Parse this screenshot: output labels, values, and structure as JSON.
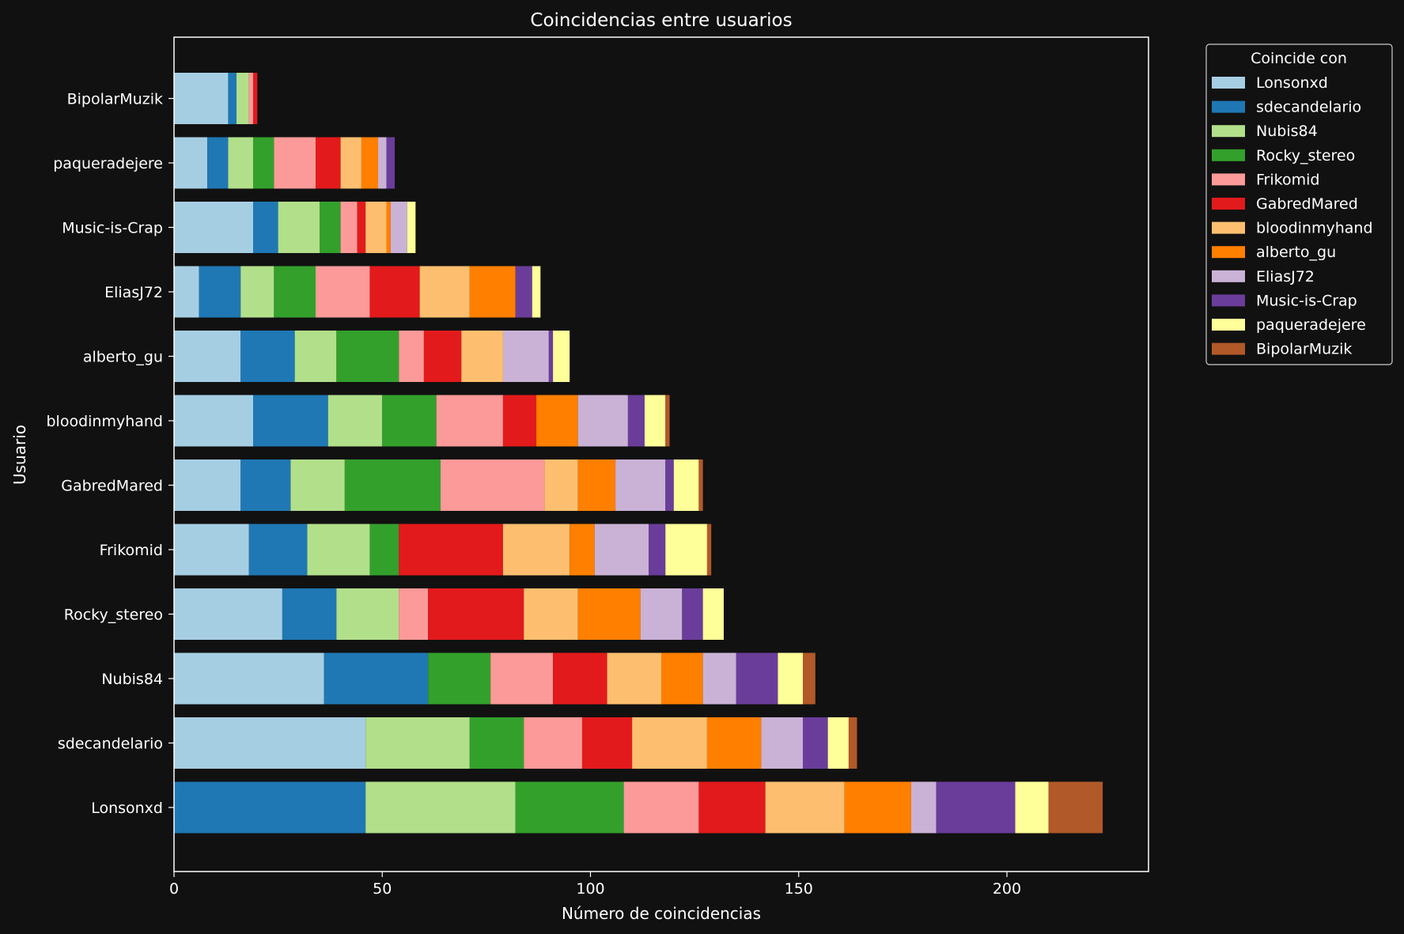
{
  "chart_data": {
    "type": "bar",
    "orientation": "horizontal",
    "stacked": true,
    "title": "Coincidencias entre usuarios",
    "xlabel": "Número de coincidencias",
    "ylabel": "Usuario",
    "xlim": [
      0,
      234
    ],
    "xticks": [
      0,
      50,
      100,
      150,
      200
    ],
    "grid": false,
    "legend_title": "Coincide con",
    "legend_position": "outside-top-right",
    "categories": [
      "Lonsonxd",
      "sdecandelario",
      "Nubis84",
      "Rocky_stereo",
      "Frikomid",
      "GabredMared",
      "bloodinmyhand",
      "alberto_gu",
      "EliasJ72",
      "Music-is-Crap",
      "paqueradejere",
      "BipolarMuzik"
    ],
    "series": [
      {
        "name": "Lonsonxd",
        "color": "#a6cee3",
        "values": [
          0,
          46,
          36,
          26,
          18,
          16,
          19,
          16,
          6,
          19,
          8,
          13
        ]
      },
      {
        "name": "sdecandelario",
        "color": "#1f78b4",
        "values": [
          46,
          0,
          25,
          13,
          14,
          12,
          18,
          13,
          10,
          6,
          5,
          2
        ]
      },
      {
        "name": "Nubis84",
        "color": "#b2df8a",
        "values": [
          36,
          25,
          0,
          15,
          15,
          13,
          13,
          10,
          8,
          10,
          6,
          3
        ]
      },
      {
        "name": "Rocky_stereo",
        "color": "#33a02c",
        "values": [
          26,
          13,
          15,
          0,
          7,
          23,
          13,
          15,
          10,
          5,
          5,
          0
        ]
      },
      {
        "name": "Frikomid",
        "color": "#fb9a99",
        "values": [
          18,
          14,
          15,
          7,
          0,
          25,
          16,
          6,
          13,
          4,
          10,
          1
        ]
      },
      {
        "name": "GabredMared",
        "color": "#e31a1c",
        "values": [
          16,
          12,
          13,
          23,
          25,
          0,
          8,
          9,
          12,
          2,
          6,
          1
        ]
      },
      {
        "name": "bloodinmyhand",
        "color": "#fdbf6f",
        "values": [
          19,
          18,
          13,
          13,
          16,
          8,
          0,
          10,
          12,
          5,
          5,
          0
        ]
      },
      {
        "name": "alberto_gu",
        "color": "#ff7f00",
        "values": [
          16,
          13,
          10,
          15,
          6,
          9,
          10,
          0,
          11,
          1,
          4,
          0
        ]
      },
      {
        "name": "EliasJ72",
        "color": "#cab2d6",
        "values": [
          6,
          10,
          8,
          10,
          13,
          12,
          12,
          11,
          0,
          4,
          2,
          0
        ]
      },
      {
        "name": "Music-is-Crap",
        "color": "#6a3d9a",
        "values": [
          19,
          6,
          10,
          5,
          4,
          2,
          4,
          1,
          4,
          0,
          2,
          0
        ]
      },
      {
        "name": "paqueradejere",
        "color": "#ffff99",
        "values": [
          8,
          5,
          6,
          5,
          10,
          6,
          5,
          4,
          2,
          2,
          0,
          0
        ]
      },
      {
        "name": "BipolarMuzik",
        "color": "#b15928",
        "values": [
          13,
          2,
          3,
          0,
          1,
          1,
          1,
          0,
          0,
          0,
          0,
          0
        ]
      }
    ]
  },
  "colors": {
    "background": "#111111",
    "axes": "#ffffff",
    "text": "#ffffff"
  }
}
